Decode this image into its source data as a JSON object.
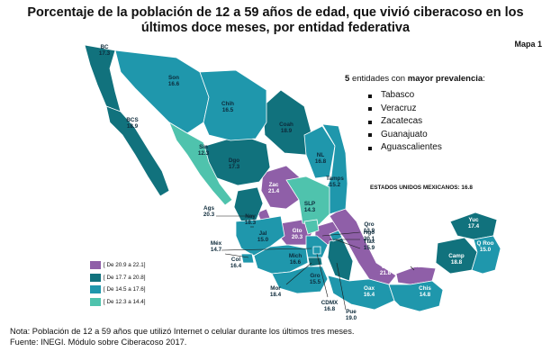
{
  "title_line1": "Porcentaje de la población de 12 a 59 años de edad, que vivió ciberacoso en los",
  "title_line2": "últimos doce meses, por entidad federativa",
  "map_label": "Mapa 1",
  "top_states": {
    "count": "5",
    "pre": "entidades con",
    "bold": "mayor prevalencia",
    "post": ":",
    "items": [
      "Tabasco",
      "Veracruz",
      "Zacatecas",
      "Guanajuato",
      "Aguascalientes"
    ]
  },
  "national": "ESTADOS UNIDOS MEXICANOS: 16.8",
  "legend": [
    {
      "label": "[ De 20.9 a 22.1]",
      "color": "#8f5fa8"
    },
    {
      "label": "[ De 17.7 a 20.8]",
      "color": "#11727d"
    },
    {
      "label": "[ De 14.5 a 17.6]",
      "color": "#1f97ac"
    },
    {
      "label": "[ De 12.3 a 14.4]",
      "color": "#4fc3ad"
    }
  ],
  "states": [
    {
      "abbr": "BC",
      "value": "17.3"
    },
    {
      "abbr": "Son",
      "value": "16.6"
    },
    {
      "abbr": "BCS",
      "value": "18.9"
    },
    {
      "abbr": "Chih",
      "value": "16.5"
    },
    {
      "abbr": "Coah",
      "value": "18.9"
    },
    {
      "abbr": "Sin",
      "value": "12.3"
    },
    {
      "abbr": "Dgo",
      "value": "17.3"
    },
    {
      "abbr": "NL",
      "value": "16.8"
    },
    {
      "abbr": "Zac",
      "value": "21.4"
    },
    {
      "abbr": "Tamps",
      "value": "15.2"
    },
    {
      "abbr": "SLP",
      "value": "14.3"
    },
    {
      "abbr": "Ags",
      "value": "20.3"
    },
    {
      "abbr": "Nay",
      "value": "18.3"
    },
    {
      "abbr": "Jal",
      "value": "15.0"
    },
    {
      "abbr": "Gto",
      "value": "20.3"
    },
    {
      "abbr": "Qro",
      "value": "13.9"
    },
    {
      "abbr": "Hgo",
      "value": "20.1"
    },
    {
      "abbr": "Méx",
      "value": "14.7"
    },
    {
      "abbr": "Col",
      "value": "16.4"
    },
    {
      "abbr": "Mich",
      "value": "16.6"
    },
    {
      "abbr": "Tlax",
      "value": "15.9"
    },
    {
      "abbr": "Ver",
      "value": "21.8"
    },
    {
      "abbr": "Tab",
      "value": "22.1"
    },
    {
      "abbr": "Camp",
      "value": "18.8"
    },
    {
      "abbr": "Yuc",
      "value": "17.4"
    },
    {
      "abbr": "Q Roo",
      "value": "15.0"
    },
    {
      "abbr": "Mor",
      "value": "18.4"
    },
    {
      "abbr": "Gro",
      "value": "15.5"
    },
    {
      "abbr": "Oax",
      "value": "16.4"
    },
    {
      "abbr": "Chis",
      "value": "14.8"
    },
    {
      "abbr": "CDMX",
      "value": "16.8"
    },
    {
      "abbr": "Pue",
      "value": "19.0"
    }
  ],
  "footer_note": "Nota: Población de 12 a 59 años que utilizó Internet o celular durante los últimos tres meses.",
  "footer_source": "Fuente: INEGI. Módulo sobre Ciberacoso 2017."
}
